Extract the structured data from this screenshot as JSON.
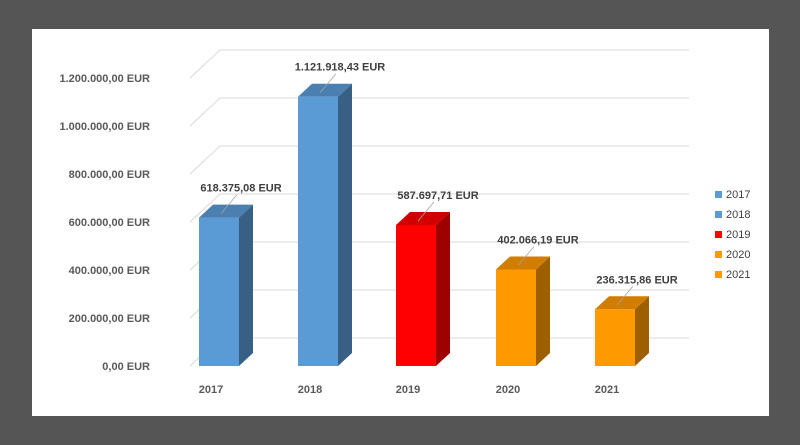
{
  "chart_data": {
    "type": "bar",
    "style": "3d-column",
    "categories": [
      "2017",
      "2018",
      "2019",
      "2020",
      "2021"
    ],
    "values": [
      618375.08,
      1121918.43,
      587697.71,
      402066.19,
      236315.86
    ],
    "data_labels": [
      "618.375,08 EUR",
      "1.121.918,43 EUR",
      "587.697,71 EUR",
      "402.066,19 EUR",
      "236.315,86 EUR"
    ],
    "colors": [
      "#5b9bd5",
      "#5b9bd5",
      "#ff0000",
      "#ff9900",
      "#ff9900"
    ],
    "ylim": [
      0,
      1200000
    ],
    "y_ticks": [
      0,
      200000,
      400000,
      600000,
      800000,
      1000000,
      1200000
    ],
    "y_tick_labels": [
      "0,00 EUR",
      "200.000,00 EUR",
      "400.000,00 EUR",
      "600.000,00 EUR",
      "800.000,00 EUR",
      "1.000.000,00 EUR",
      "1.200.000,00 EUR"
    ],
    "grid": true,
    "legend": {
      "position": "right",
      "entries": [
        "2017",
        "2018",
        "2019",
        "2020",
        "2021"
      ]
    },
    "title": "",
    "xlabel": "",
    "ylabel": ""
  }
}
